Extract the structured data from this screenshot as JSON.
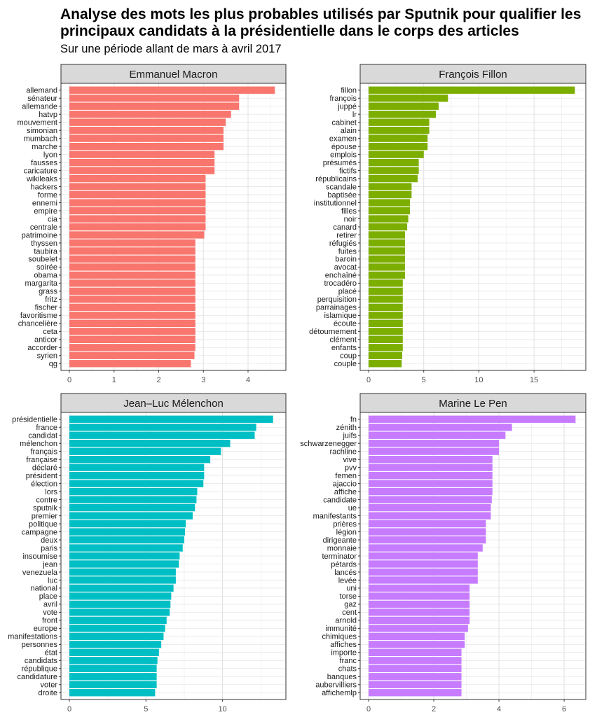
{
  "title": "Analyse des mots les plus probables utilisés par Sputnik pour qualifier les principaux candidats à la présidentielle dans le corps des articles",
  "subtitle": "Sur une période allant de mars à avril 2017",
  "chart_data": [
    {
      "type": "bar",
      "orientation": "horizontal",
      "facet": "Emmanuel Macron",
      "color": "#F8766D",
      "xlim": [
        0,
        4.8
      ],
      "x_ticks": [
        0,
        1,
        2,
        3,
        4
      ],
      "grid": true,
      "categories": [
        "allemand",
        "sénateur",
        "allemande",
        "hatvp",
        "mouvement",
        "simonian",
        "mumbach",
        "marche",
        "lyon",
        "fausses",
        "caricature",
        "wikileaks",
        "hackers",
        "forme",
        "ennemi",
        "empire",
        "cia",
        "centrale",
        "patrimoine",
        "thyssen",
        "taubira",
        "soubelet",
        "soirée",
        "obama",
        "margarita",
        "grass",
        "fritz",
        "fischer",
        "favoritisme",
        "chancelière",
        "ceta",
        "anticor",
        "accorder",
        "syrien",
        "qg"
      ],
      "values": [
        4.6,
        3.8,
        3.8,
        3.62,
        3.5,
        3.45,
        3.45,
        3.45,
        3.25,
        3.25,
        3.25,
        3.05,
        3.05,
        3.05,
        3.05,
        3.05,
        3.05,
        3.05,
        3.02,
        2.82,
        2.82,
        2.82,
        2.82,
        2.82,
        2.82,
        2.82,
        2.82,
        2.82,
        2.82,
        2.82,
        2.82,
        2.82,
        2.82,
        2.8,
        2.72
      ]
    },
    {
      "type": "bar",
      "orientation": "horizontal",
      "facet": "François Fillon",
      "color": "#7CAE00",
      "xlim": [
        0,
        19.5
      ],
      "x_ticks": [
        0,
        5,
        10,
        15
      ],
      "grid": true,
      "categories": [
        "fillon",
        "françois",
        "juppé",
        "lr",
        "cabinet",
        "alain",
        "examen",
        "épouse",
        "emplois",
        "présumés",
        "fictifs",
        "républicains",
        "scandale",
        "baptisée",
        "institutionnel",
        "filles",
        "noir",
        "canard",
        "retirer",
        "réfugiés",
        "fuites",
        "baroin",
        "avocat",
        "enchaîné",
        "trocadéro",
        "placé",
        "perquisition",
        "parrainages",
        "islamique",
        "écoute",
        "détournement",
        "clément",
        "enfants",
        "coup",
        "couple"
      ],
      "values": [
        18.7,
        7.2,
        6.35,
        6.1,
        5.5,
        5.5,
        5.35,
        5.35,
        5.0,
        4.55,
        4.55,
        4.45,
        3.9,
        3.9,
        3.75,
        3.75,
        3.6,
        3.5,
        3.3,
        3.3,
        3.3,
        3.3,
        3.3,
        3.3,
        3.1,
        3.1,
        3.1,
        3.1,
        3.1,
        3.1,
        3.1,
        3.1,
        3.1,
        3.05,
        3.0
      ]
    },
    {
      "type": "bar",
      "orientation": "horizontal",
      "facet": "Jean–Luc Mélenchon",
      "color": "#00BFC4",
      "xlim": [
        0,
        14.0
      ],
      "x_ticks": [
        0,
        5,
        10
      ],
      "grid": true,
      "categories": [
        "présidentielle",
        "france",
        "candidat",
        "mélenchon",
        "français",
        "française",
        "déclaré",
        "président",
        "élection",
        "lors",
        "contre",
        "sputnik",
        "premier",
        "politique",
        "campagne",
        "deux",
        "paris",
        "insoumise",
        "jean",
        "venezuela",
        "luc",
        "national",
        "place",
        "avril",
        "vote",
        "front",
        "europe",
        "manifestations",
        "personnes",
        "état",
        "candidats",
        "république",
        "candidature",
        "voter",
        "droite"
      ],
      "values": [
        13.3,
        12.2,
        12.1,
        10.5,
        9.9,
        9.2,
        8.8,
        8.8,
        8.75,
        8.35,
        8.3,
        8.2,
        8.05,
        7.6,
        7.55,
        7.5,
        7.4,
        7.2,
        7.15,
        6.95,
        6.95,
        6.8,
        6.65,
        6.6,
        6.55,
        6.35,
        6.25,
        6.15,
        6.0,
        5.85,
        5.75,
        5.7,
        5.7,
        5.7,
        5.6
      ]
    },
    {
      "type": "bar",
      "orientation": "horizontal",
      "facet": "Marine Le Pen",
      "color": "#C77CFF",
      "xlim": [
        0,
        6.6
      ],
      "x_ticks": [
        0,
        2,
        4,
        6
      ],
      "grid": true,
      "categories": [
        "fn",
        "zénith",
        "juifs",
        "schwarzenegger",
        "rachline",
        "vive",
        "pvv",
        "femen",
        "ajaccio",
        "affiche",
        "candidate",
        "ue",
        "manifestants",
        "prières",
        "légion",
        "dirigeante",
        "monnaie",
        "terminator",
        "pétards",
        "lancés",
        "levée",
        "uni",
        "torse",
        "gaz",
        "cent",
        "arnold",
        "immunité",
        "chimiques",
        "affiches",
        "importe",
        "franc",
        "chats",
        "banques",
        "aubervilliers",
        "affichemlp"
      ],
      "values": [
        6.35,
        4.4,
        4.2,
        4.0,
        4.0,
        3.8,
        3.8,
        3.8,
        3.8,
        3.8,
        3.78,
        3.75,
        3.75,
        3.6,
        3.6,
        3.6,
        3.5,
        3.35,
        3.35,
        3.35,
        3.35,
        3.1,
        3.1,
        3.1,
        3.1,
        3.1,
        3.05,
        2.95,
        2.95,
        2.85,
        2.85,
        2.85,
        2.85,
        2.85,
        2.85
      ]
    }
  ]
}
